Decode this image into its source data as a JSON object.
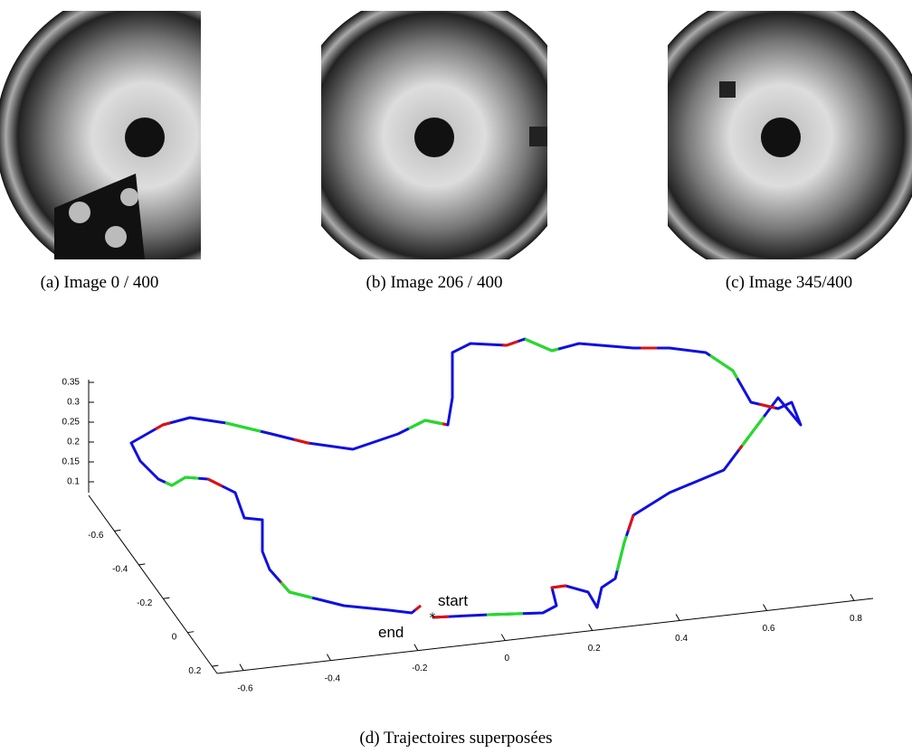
{
  "images": [
    {
      "caption": "(a) Image 0 / 400"
    },
    {
      "caption": "(b) Image 206 / 400"
    },
    {
      "caption": "(c) Image 345/400"
    }
  ],
  "plot": {
    "caption": "(d) Trajectoires superposées",
    "zticks": [
      0.35,
      0.3,
      0.25,
      0.2,
      0.15,
      0.1
    ],
    "yticks": [
      -0.6,
      -0.4,
      -0.2,
      0,
      0.2
    ],
    "xticks": [
      -0.6,
      -0.4,
      -0.2,
      0,
      0.2,
      0.4,
      0.6,
      0.8
    ],
    "start_label": "start",
    "end_label": "end"
  }
}
